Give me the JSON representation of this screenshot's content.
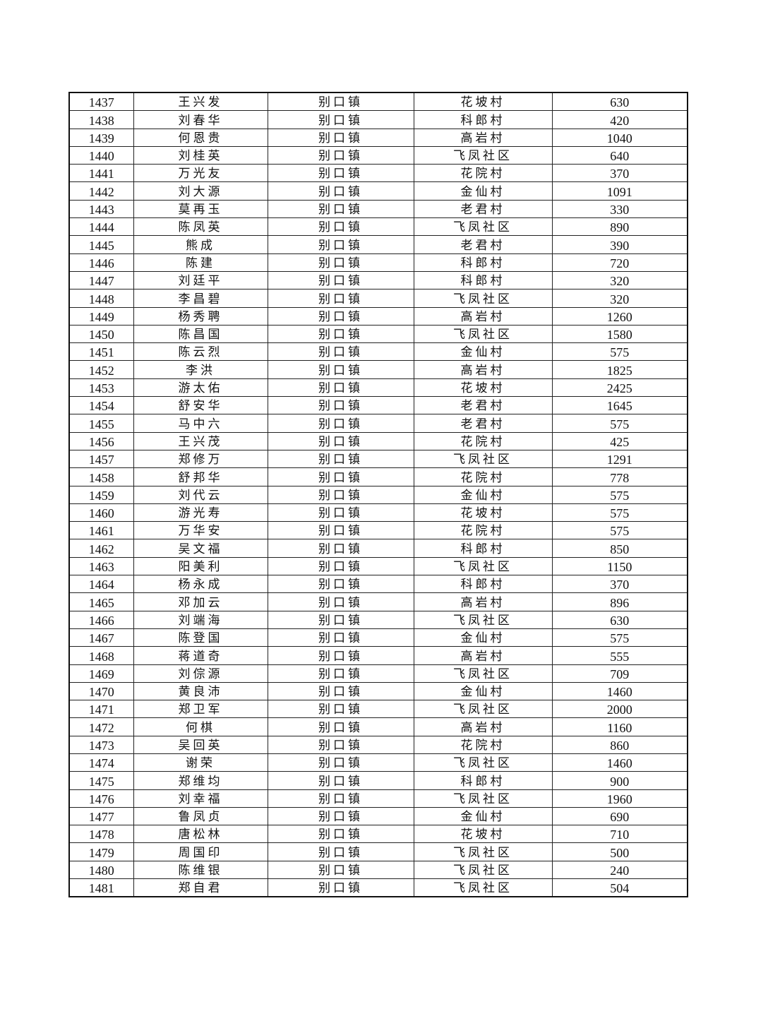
{
  "table": {
    "rows": [
      [
        "1437",
        "王兴发",
        "别口镇",
        "花坡村",
        "630"
      ],
      [
        "1438",
        "刘春华",
        "别口镇",
        "科郎村",
        "420"
      ],
      [
        "1439",
        "何恩贵",
        "别口镇",
        "高岩村",
        "1040"
      ],
      [
        "1440",
        "刘桂英",
        "别口镇",
        "飞凤社区",
        "640"
      ],
      [
        "1441",
        "万光友",
        "别口镇",
        "花院村",
        "370"
      ],
      [
        "1442",
        "刘大源",
        "别口镇",
        "金仙村",
        "1091"
      ],
      [
        "1443",
        "莫再玉",
        "别口镇",
        "老君村",
        "330"
      ],
      [
        "1444",
        "陈凤英",
        "别口镇",
        "飞凤社区",
        "890"
      ],
      [
        "1445",
        "熊成",
        "别口镇",
        "老君村",
        "390"
      ],
      [
        "1446",
        "陈建",
        "别口镇",
        "科郎村",
        "720"
      ],
      [
        "1447",
        "刘廷平",
        "别口镇",
        "科郎村",
        "320"
      ],
      [
        "1448",
        "李昌碧",
        "别口镇",
        "飞凤社区",
        "320"
      ],
      [
        "1449",
        "杨秀聘",
        "别口镇",
        "高岩村",
        "1260"
      ],
      [
        "1450",
        "陈昌国",
        "别口镇",
        "飞凤社区",
        "1580"
      ],
      [
        "1451",
        "陈云烈",
        "别口镇",
        "金仙村",
        "575"
      ],
      [
        "1452",
        "李洪",
        "别口镇",
        "高岩村",
        "1825"
      ],
      [
        "1453",
        "游太佑",
        "别口镇",
        "花坡村",
        "2425"
      ],
      [
        "1454",
        "舒安华",
        "别口镇",
        "老君村",
        "1645"
      ],
      [
        "1455",
        "马中六",
        "别口镇",
        "老君村",
        "575"
      ],
      [
        "1456",
        "王兴茂",
        "别口镇",
        "花院村",
        "425"
      ],
      [
        "1457",
        "郑修万",
        "别口镇",
        "飞凤社区",
        "1291"
      ],
      [
        "1458",
        "舒邦华",
        "别口镇",
        "花院村",
        "778"
      ],
      [
        "1459",
        "刘代云",
        "别口镇",
        "金仙村",
        "575"
      ],
      [
        "1460",
        "游光寿",
        "别口镇",
        "花坡村",
        "575"
      ],
      [
        "1461",
        "万华安",
        "别口镇",
        "花院村",
        "575"
      ],
      [
        "1462",
        "吴文福",
        "别口镇",
        "科郎村",
        "850"
      ],
      [
        "1463",
        "阳美利",
        "别口镇",
        "飞凤社区",
        "1150"
      ],
      [
        "1464",
        "杨永成",
        "别口镇",
        "科郎村",
        "370"
      ],
      [
        "1465",
        "邓加云",
        "别口镇",
        "高岩村",
        "896"
      ],
      [
        "1466",
        "刘端海",
        "别口镇",
        "飞凤社区",
        "630"
      ],
      [
        "1467",
        "陈登国",
        "别口镇",
        "金仙村",
        "575"
      ],
      [
        "1468",
        "蒋道奇",
        "别口镇",
        "高岩村",
        "555"
      ],
      [
        "1469",
        "刘倧源",
        "别口镇",
        "飞凤社区",
        "709"
      ],
      [
        "1470",
        "黄良沛",
        "别口镇",
        "金仙村",
        "1460"
      ],
      [
        "1471",
        "郑卫军",
        "别口镇",
        "飞凤社区",
        "2000"
      ],
      [
        "1472",
        "何棋",
        "别口镇",
        "高岩村",
        "1160"
      ],
      [
        "1473",
        "吴回英",
        "别口镇",
        "花院村",
        "860"
      ],
      [
        "1474",
        "谢荣",
        "别口镇",
        "飞凤社区",
        "1460"
      ],
      [
        "1475",
        "郑维均",
        "别口镇",
        "科郎村",
        "900"
      ],
      [
        "1476",
        "刘幸福",
        "别口镇",
        "飞凤社区",
        "1960"
      ],
      [
        "1477",
        "鲁凤贞",
        "别口镇",
        "金仙村",
        "690"
      ],
      [
        "1478",
        "唐松林",
        "别口镇",
        "花坡村",
        "710"
      ],
      [
        "1479",
        "周国印",
        "别口镇",
        "飞凤社区",
        "500"
      ],
      [
        "1480",
        "陈维银",
        "别口镇",
        "飞凤社区",
        "240"
      ],
      [
        "1481",
        "郑自君",
        "别口镇",
        "飞凤社区",
        "504"
      ]
    ]
  }
}
